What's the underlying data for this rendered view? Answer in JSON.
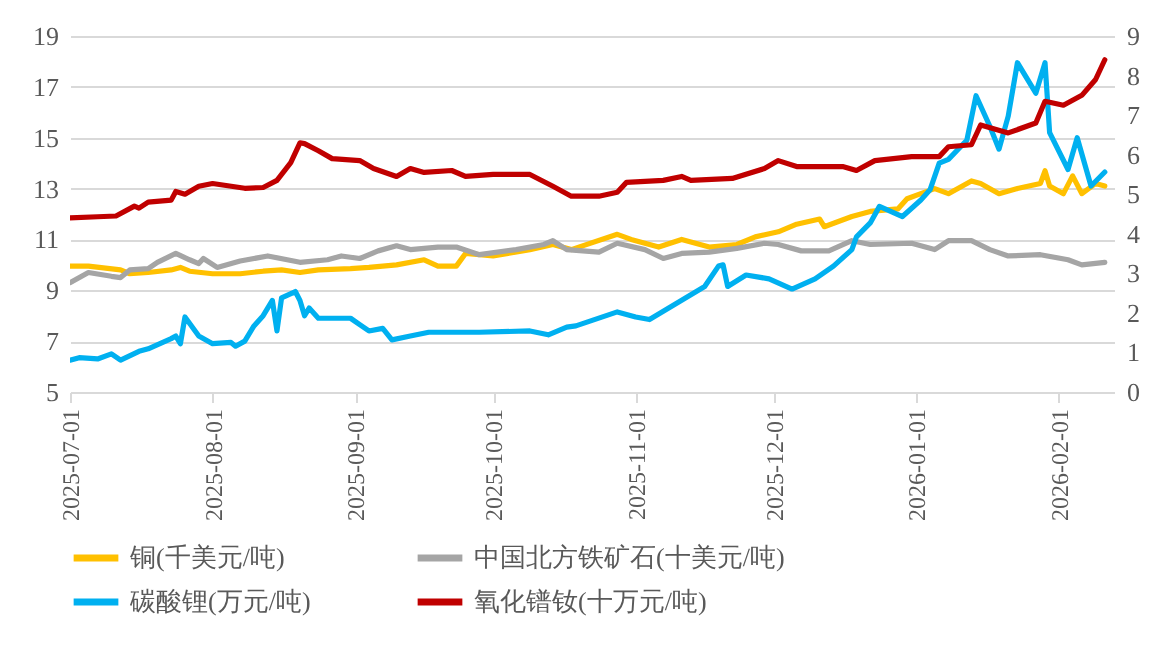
{
  "chart_data": {
    "type": "line",
    "xlim": [
      "2025-07-01",
      "2026-02-13"
    ],
    "xticks": [
      "2025-07-01",
      "2025-08-01",
      "2025-09-01",
      "2025-10-01",
      "2025-11-01",
      "2025-12-01",
      "2026-01-01",
      "2026-02-01"
    ],
    "ylim": [
      5,
      19
    ],
    "yticks": [
      5,
      7,
      9,
      11,
      13,
      15,
      17,
      19
    ],
    "y2lim": [
      0,
      9
    ],
    "y2ticks": [
      0,
      1,
      2,
      3,
      4,
      5,
      6,
      7,
      8,
      9
    ],
    "grid": "y",
    "legend": "bottom",
    "series": [
      {
        "name": "铜(千美元/吨)",
        "color": "#ffc000",
        "x": [
          "2025-07-01",
          "2025-07-05",
          "2025-07-12",
          "2025-07-14",
          "2025-07-18",
          "2025-07-23",
          "2025-07-25",
          "2025-07-27",
          "2025-08-01",
          "2025-08-07",
          "2025-08-12",
          "2025-08-16",
          "2025-08-20",
          "2025-08-24",
          "2025-08-31",
          "2025-09-04",
          "2025-09-10",
          "2025-09-16",
          "2025-09-19",
          "2025-09-23",
          "2025-09-25",
          "2025-10-01",
          "2025-10-09",
          "2025-10-14",
          "2025-10-18",
          "2025-10-28",
          "2025-10-31",
          "2025-11-06",
          "2025-11-11",
          "2025-11-17",
          "2025-11-23",
          "2025-11-27",
          "2025-12-02",
          "2025-12-06",
          "2025-12-11",
          "2025-12-12",
          "2025-12-18",
          "2025-12-22",
          "2025-12-28",
          "2025-12-30",
          "2026-01-02",
          "2026-01-05",
          "2026-01-08",
          "2026-01-13",
          "2026-01-15",
          "2026-01-19",
          "2026-01-23",
          "2026-01-28",
          "2026-01-29",
          "2026-01-30",
          "2026-02-02",
          "2026-02-04",
          "2026-02-06",
          "2026-02-09",
          "2026-02-11"
        ],
        "values": [
          9.95,
          9.95,
          9.8,
          9.65,
          9.7,
          9.8,
          9.9,
          9.75,
          9.65,
          9.65,
          9.75,
          9.8,
          9.7,
          9.8,
          9.85,
          9.9,
          10.0,
          10.2,
          9.95,
          9.95,
          10.45,
          10.35,
          10.6,
          10.8,
          10.6,
          11.2,
          11.0,
          10.7,
          11.0,
          10.7,
          10.8,
          11.1,
          11.3,
          11.6,
          11.8,
          11.5,
          11.9,
          12.1,
          12.2,
          12.6,
          12.8,
          13.0,
          12.8,
          13.3,
          13.2,
          12.8,
          13.0,
          13.2,
          13.7,
          13.1,
          12.8,
          13.5,
          12.8,
          13.2,
          13.1
        ]
      },
      {
        "name": "中国北方铁矿石(十美元/吨)",
        "color": "#a5a5a5",
        "x": [
          "2025-07-01",
          "2025-07-05",
          "2025-07-10",
          "2025-07-12",
          "2025-07-14",
          "2025-07-18",
          "2025-07-20",
          "2025-07-24",
          "2025-07-27",
          "2025-07-29",
          "2025-07-30",
          "2025-08-02",
          "2025-08-07",
          "2025-08-13",
          "2025-08-20",
          "2025-08-26",
          "2025-08-29",
          "2025-09-02",
          "2025-09-06",
          "2025-09-10",
          "2025-09-13",
          "2025-09-19",
          "2025-09-23",
          "2025-09-28",
          "2025-10-06",
          "2025-10-12",
          "2025-10-14",
          "2025-10-17",
          "2025-10-24",
          "2025-10-28",
          "2025-11-03",
          "2025-11-07",
          "2025-11-11",
          "2025-11-17",
          "2025-11-23",
          "2025-11-29",
          "2025-12-02",
          "2025-12-07",
          "2025-12-13",
          "2025-12-18",
          "2025-12-22",
          "2025-12-31",
          "2026-01-05",
          "2026-01-08",
          "2026-01-13",
          "2026-01-17",
          "2026-01-21",
          "2026-01-28",
          "2026-02-03",
          "2026-02-06",
          "2026-02-11"
        ],
        "values": [
          9.3,
          9.7,
          9.55,
          9.5,
          9.8,
          9.85,
          10.1,
          10.45,
          10.2,
          10.05,
          10.25,
          9.9,
          10.15,
          10.35,
          10.1,
          10.2,
          10.35,
          10.25,
          10.55,
          10.75,
          10.6,
          10.7,
          10.7,
          10.4,
          10.6,
          10.8,
          10.95,
          10.6,
          10.5,
          10.85,
          10.6,
          10.25,
          10.45,
          10.5,
          10.65,
          10.85,
          10.8,
          10.55,
          10.55,
          10.95,
          10.8,
          10.85,
          10.6,
          10.95,
          10.95,
          10.6,
          10.35,
          10.4,
          10.2,
          10.0,
          10.1
        ]
      },
      {
        "name": "碳酸锂(万元/吨)",
        "color": "#00b0f0",
        "x": [
          "2025-07-01",
          "2025-07-03",
          "2025-07-07",
          "2025-07-10",
          "2025-07-12",
          "2025-07-16",
          "2025-07-18",
          "2025-07-23",
          "2025-07-24",
          "2025-07-25",
          "2025-07-26",
          "2025-07-29",
          "2025-08-01",
          "2025-08-05",
          "2025-08-06",
          "2025-08-08",
          "2025-08-10",
          "2025-08-12",
          "2025-08-14",
          "2025-08-15",
          "2025-08-16",
          "2025-08-19",
          "2025-08-20",
          "2025-08-21",
          "2025-08-22",
          "2025-08-24",
          "2025-08-31",
          "2025-09-02",
          "2025-09-04",
          "2025-09-07",
          "2025-09-09",
          "2025-09-13",
          "2025-09-17",
          "2025-09-28",
          "2025-10-09",
          "2025-10-13",
          "2025-10-17",
          "2025-10-19",
          "2025-10-28",
          "2025-11-01",
          "2025-11-04",
          "2025-11-10",
          "2025-11-16",
          "2025-11-19",
          "2025-11-20",
          "2025-11-21",
          "2025-11-25",
          "2025-11-30",
          "2025-12-05",
          "2025-12-10",
          "2025-12-14",
          "2025-12-18",
          "2025-12-19",
          "2025-12-22",
          "2025-12-24",
          "2025-12-29",
          "2026-01-02",
          "2026-01-04",
          "2026-01-06",
          "2026-01-08",
          "2026-01-12",
          "2026-01-14",
          "2026-01-17",
          "2026-01-19",
          "2026-01-21",
          "2026-01-23",
          "2026-01-27",
          "2026-01-29",
          "2026-01-30",
          "2026-02-03",
          "2026-02-05",
          "2026-02-08",
          "2026-02-11"
        ],
        "values": [
          6.25,
          6.35,
          6.3,
          6.5,
          6.25,
          6.6,
          6.7,
          7.1,
          7.2,
          6.9,
          7.95,
          7.2,
          6.9,
          6.95,
          6.8,
          7.0,
          7.6,
          8.0,
          8.6,
          7.4,
          8.7,
          8.95,
          8.6,
          8.0,
          8.3,
          7.9,
          7.9,
          7.65,
          7.4,
          7.5,
          7.05,
          7.2,
          7.35,
          7.35,
          7.4,
          7.25,
          7.55,
          7.6,
          8.15,
          7.95,
          7.85,
          8.5,
          9.15,
          9.95,
          10.0,
          9.15,
          9.6,
          9.45,
          9.05,
          9.45,
          9.95,
          10.6,
          11.1,
          11.65,
          12.3,
          11.9,
          12.55,
          12.95,
          14.0,
          14.15,
          14.9,
          16.65,
          15.45,
          14.55,
          15.85,
          17.95,
          16.75,
          17.95,
          15.2,
          13.75,
          15.0,
          13.1,
          13.65
        ]
      },
      {
        "name": "氧化镨钕(十万元/吨)",
        "color": "#c00000",
        "axis": "y2",
        "x": [
          "2025-07-01",
          "2025-07-07",
          "2025-07-11",
          "2025-07-15",
          "2025-07-16",
          "2025-07-18",
          "2025-07-23",
          "2025-07-24",
          "2025-07-26",
          "2025-07-29",
          "2025-08-01",
          "2025-08-08",
          "2025-08-12",
          "2025-08-15",
          "2025-08-18",
          "2025-08-20",
          "2025-08-21",
          "2025-08-24",
          "2025-08-27",
          "2025-09-02",
          "2025-09-05",
          "2025-09-10",
          "2025-09-13",
          "2025-09-16",
          "2025-09-22",
          "2025-09-25",
          "2025-10-01",
          "2025-10-09",
          "2025-10-14",
          "2025-10-18",
          "2025-10-24",
          "2025-10-28",
          "2025-10-30",
          "2025-11-07",
          "2025-11-11",
          "2025-11-13",
          "2025-11-22",
          "2025-11-29",
          "2025-12-02",
          "2025-12-06",
          "2025-12-16",
          "2025-12-19",
          "2025-12-23",
          "2025-12-31",
          "2026-01-06",
          "2026-01-08",
          "2026-01-13",
          "2026-01-15",
          "2026-01-21",
          "2026-01-27",
          "2026-01-29",
          "2026-02-02",
          "2026-02-06",
          "2026-02-09",
          "2026-02-11"
        ],
        "values": [
          4.4,
          4.43,
          4.45,
          4.7,
          4.65,
          4.8,
          4.85,
          5.07,
          5.0,
          5.2,
          5.27,
          5.15,
          5.17,
          5.35,
          5.8,
          6.3,
          6.28,
          6.1,
          5.9,
          5.85,
          5.65,
          5.45,
          5.65,
          5.55,
          5.6,
          5.45,
          5.5,
          5.5,
          5.2,
          4.95,
          4.95,
          5.05,
          5.3,
          5.35,
          5.45,
          5.35,
          5.4,
          5.65,
          5.85,
          5.7,
          5.7,
          5.6,
          5.85,
          5.95,
          5.95,
          6.2,
          6.25,
          6.75,
          6.55,
          6.8,
          7.35,
          7.25,
          7.5,
          7.9,
          8.4
        ]
      }
    ]
  }
}
